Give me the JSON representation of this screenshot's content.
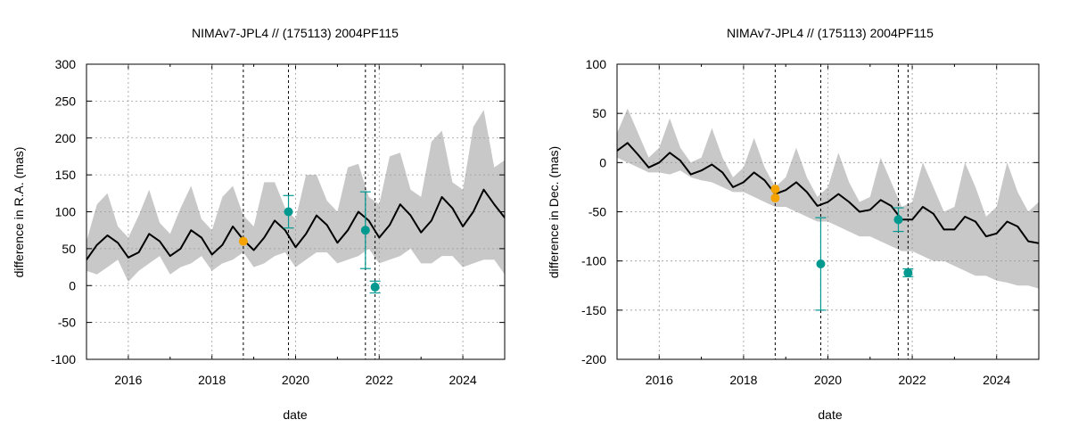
{
  "chart_data": [
    {
      "type": "line",
      "title": "NIMAv7-JPL4 // (175113) 2004PF115",
      "xlabel": "date",
      "ylabel": "difference in R.A. (mas)",
      "xlim": [
        2015,
        2025
      ],
      "ylim": [
        -100,
        300
      ],
      "xticks": [
        2016,
        2018,
        2020,
        2022,
        2024
      ],
      "xtick_labels": [
        "2016",
        "2018",
        "2020",
        "2022",
        "2024"
      ],
      "yticks": [
        -100,
        -50,
        0,
        50,
        100,
        150,
        200,
        250,
        300
      ],
      "ytick_labels": [
        "-100",
        "-50",
        "0",
        "50",
        "100",
        "150",
        "200",
        "250",
        "300"
      ],
      "grid": true,
      "model": {
        "name": "NIMAv7-JPL4",
        "color": "#000000",
        "x": [
          2015.0,
          2015.25,
          2015.5,
          2015.75,
          2016.0,
          2016.25,
          2016.5,
          2016.75,
          2017.0,
          2017.25,
          2017.5,
          2017.75,
          2018.0,
          2018.25,
          2018.5,
          2018.75,
          2019.0,
          2019.25,
          2019.5,
          2019.75,
          2020.0,
          2020.25,
          2020.5,
          2020.75,
          2021.0,
          2021.25,
          2021.5,
          2021.75,
          2022.0,
          2022.25,
          2022.5,
          2022.75,
          2023.0,
          2023.25,
          2023.5,
          2023.75,
          2024.0,
          2024.25,
          2024.5,
          2024.75,
          2025.0
        ],
        "y": [
          35,
          55,
          68,
          58,
          38,
          45,
          70,
          60,
          40,
          50,
          75,
          65,
          42,
          55,
          80,
          62,
          48,
          65,
          88,
          75,
          52,
          70,
          95,
          82,
          58,
          75,
          100,
          88,
          65,
          82,
          110,
          95,
          72,
          88,
          120,
          105,
          80,
          100,
          130,
          110,
          92
        ]
      },
      "uncertainty_band": {
        "color": "#c8c8c8",
        "x": [
          2015.0,
          2015.25,
          2015.5,
          2015.75,
          2016.0,
          2016.25,
          2016.5,
          2016.75,
          2017.0,
          2017.25,
          2017.5,
          2017.75,
          2018.0,
          2018.25,
          2018.5,
          2018.75,
          2019.0,
          2019.25,
          2019.5,
          2019.75,
          2020.0,
          2020.25,
          2020.5,
          2020.75,
          2021.0,
          2021.25,
          2021.5,
          2021.75,
          2022.0,
          2022.25,
          2022.5,
          2022.75,
          2023.0,
          2023.25,
          2023.5,
          2023.75,
          2024.0,
          2024.25,
          2024.5,
          2024.75,
          2025.0
        ],
        "upper": [
          60,
          110,
          125,
          80,
          65,
          95,
          130,
          85,
          70,
          105,
          135,
          90,
          75,
          120,
          135,
          95,
          80,
          140,
          140,
          105,
          90,
          150,
          150,
          115,
          100,
          160,
          165,
          120,
          110,
          175,
          180,
          130,
          120,
          195,
          210,
          140,
          130,
          215,
          238,
          160,
          170
        ],
        "lower": [
          20,
          15,
          25,
          35,
          5,
          20,
          30,
          40,
          15,
          25,
          30,
          40,
          20,
          30,
          35,
          45,
          25,
          30,
          40,
          45,
          25,
          35,
          45,
          45,
          30,
          35,
          40,
          50,
          30,
          35,
          40,
          50,
          30,
          30,
          40,
          40,
          25,
          30,
          35,
          35,
          15
        ]
      },
      "vlines": [
        2018.75,
        2019.83,
        2021.67,
        2021.9
      ],
      "points": [
        {
          "x": 2018.75,
          "y": 60,
          "color": "#f5a300",
          "err": 0
        },
        {
          "x": 2019.83,
          "y": 100,
          "color": "#009990",
          "err": 22
        },
        {
          "x": 2021.67,
          "y": 75,
          "color": "#009990",
          "err": 52
        },
        {
          "x": 2021.9,
          "y": -2,
          "color": "#009990",
          "err": 8
        }
      ]
    },
    {
      "type": "line",
      "title": "NIMAv7-JPL4 // (175113) 2004PF115",
      "xlabel": "date",
      "ylabel": "difference in Dec. (mas)",
      "xlim": [
        2015,
        2025
      ],
      "ylim": [
        -200,
        100
      ],
      "xticks": [
        2016,
        2018,
        2020,
        2022,
        2024
      ],
      "xtick_labels": [
        "2016",
        "2018",
        "2020",
        "2022",
        "2024"
      ],
      "yticks": [
        -200,
        -150,
        -100,
        -50,
        0,
        50,
        100
      ],
      "ytick_labels": [
        "-200",
        "-150",
        "-100",
        "-50",
        "0",
        "50",
        "100"
      ],
      "grid": true,
      "model": {
        "name": "NIMAv7-JPL4",
        "color": "#000000",
        "x": [
          2015.0,
          2015.25,
          2015.5,
          2015.75,
          2016.0,
          2016.25,
          2016.5,
          2016.75,
          2017.0,
          2017.25,
          2017.5,
          2017.75,
          2018.0,
          2018.25,
          2018.5,
          2018.75,
          2019.0,
          2019.25,
          2019.5,
          2019.75,
          2020.0,
          2020.25,
          2020.5,
          2020.75,
          2021.0,
          2021.25,
          2021.5,
          2021.75,
          2022.0,
          2022.25,
          2022.5,
          2022.75,
          2023.0,
          2023.25,
          2023.5,
          2023.75,
          2024.0,
          2024.25,
          2024.5,
          2024.75,
          2025.0
        ],
        "y": [
          12,
          20,
          8,
          -5,
          0,
          10,
          2,
          -12,
          -8,
          -2,
          -10,
          -25,
          -20,
          -10,
          -18,
          -32,
          -28,
          -20,
          -30,
          -44,
          -40,
          -32,
          -40,
          -50,
          -48,
          -38,
          -44,
          -58,
          -58,
          -45,
          -52,
          -68,
          -68,
          -55,
          -60,
          -75,
          -72,
          -60,
          -65,
          -80,
          -82
        ]
      },
      "uncertainty_band": {
        "color": "#c8c8c8",
        "x": [
          2015.0,
          2015.25,
          2015.5,
          2015.75,
          2016.0,
          2016.25,
          2016.5,
          2016.75,
          2017.0,
          2017.25,
          2017.5,
          2017.75,
          2018.0,
          2018.25,
          2018.5,
          2018.75,
          2019.0,
          2019.25,
          2019.5,
          2019.75,
          2020.0,
          2020.25,
          2020.5,
          2020.75,
          2021.0,
          2021.25,
          2021.5,
          2021.75,
          2022.0,
          2022.25,
          2022.5,
          2022.75,
          2023.0,
          2023.25,
          2023.5,
          2023.75,
          2024.0,
          2024.25,
          2024.5,
          2024.75,
          2025.0
        ],
        "upper": [
          30,
          55,
          30,
          5,
          15,
          45,
          15,
          0,
          5,
          35,
          5,
          -15,
          -5,
          25,
          -5,
          -25,
          -15,
          15,
          -15,
          -35,
          -25,
          10,
          -20,
          -40,
          -35,
          5,
          -20,
          -45,
          -40,
          0,
          -25,
          -50,
          -45,
          0,
          -25,
          -55,
          -45,
          0,
          -30,
          -50,
          -40
        ],
        "lower": [
          5,
          0,
          -5,
          -10,
          -10,
          -12,
          -8,
          -15,
          -18,
          -20,
          -25,
          -30,
          -30,
          -35,
          -40,
          -45,
          -45,
          -50,
          -55,
          -60,
          -60,
          -65,
          -70,
          -75,
          -75,
          -80,
          -85,
          -90,
          -90,
          -95,
          -100,
          -100,
          -105,
          -110,
          -115,
          -115,
          -120,
          -122,
          -125,
          -125,
          -128
        ]
      },
      "vlines": [
        2018.75,
        2019.83,
        2021.67,
        2021.9
      ],
      "points": [
        {
          "x": 2018.75,
          "y": -27,
          "color": "#f5a300",
          "err": 0
        },
        {
          "x": 2018.75,
          "y": -36,
          "color": "#f5a300",
          "err": 0
        },
        {
          "x": 2019.83,
          "y": -103,
          "color": "#009990",
          "err": 47
        },
        {
          "x": 2021.67,
          "y": -58,
          "color": "#009990",
          "err": 12
        },
        {
          "x": 2021.9,
          "y": -112,
          "color": "#009990",
          "err": 4
        }
      ]
    }
  ]
}
